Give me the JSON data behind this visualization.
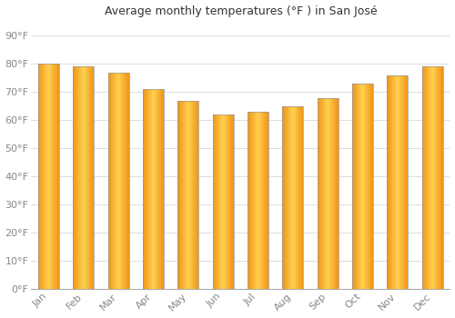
{
  "title": "Average monthly temperatures (°F ) in San José",
  "months": [
    "Jan",
    "Feb",
    "Mar",
    "Apr",
    "May",
    "Jun",
    "Jul",
    "Aug",
    "Sep",
    "Oct",
    "Nov",
    "Dec"
  ],
  "values": [
    80,
    79,
    77,
    71,
    67,
    62,
    63,
    65,
    68,
    73,
    76,
    79
  ],
  "bar_color_left": "#F5A623",
  "bar_color_center": "#FFD060",
  "bar_color_right": "#E8921A",
  "bar_edge_color": "#A07020",
  "background_color": "#FFFFFF",
  "grid_color": "#DDDDDD",
  "ylim": [
    0,
    95
  ],
  "yticks": [
    0,
    10,
    20,
    30,
    40,
    50,
    60,
    70,
    80,
    90
  ],
  "ytick_labels": [
    "0°F",
    "10°F",
    "20°F",
    "30°F",
    "40°F",
    "50°F",
    "60°F",
    "70°F",
    "80°F",
    "90°F"
  ],
  "title_fontsize": 9,
  "tick_fontsize": 8,
  "tick_font_color": "#888888",
  "bar_width": 0.6
}
